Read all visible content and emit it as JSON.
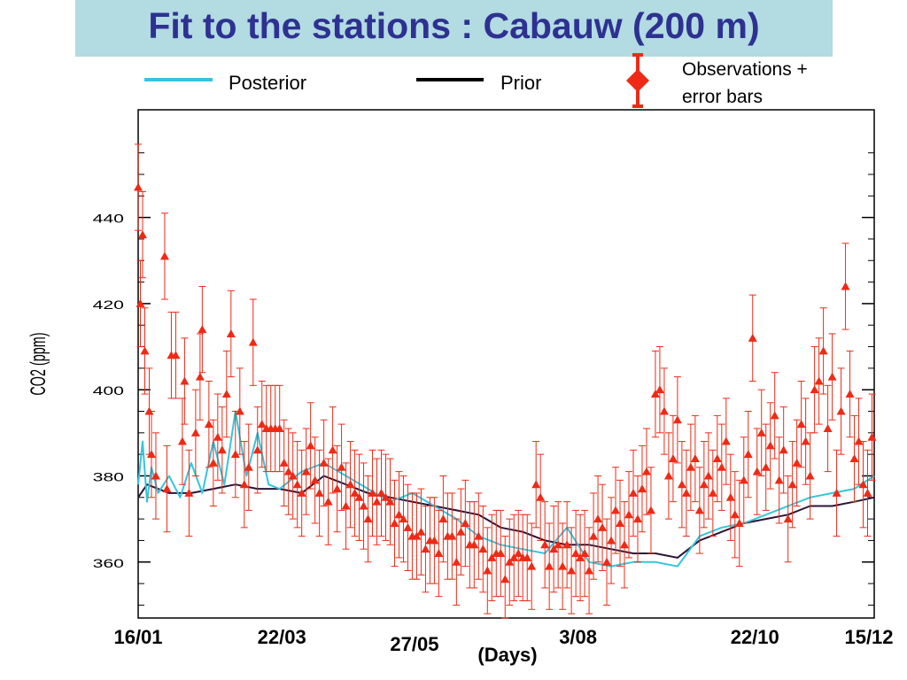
{
  "slide": {
    "title": "Fit to the stations : Cabauw (200 m)",
    "title_bg": "#b2dbe2",
    "title_color": "#2e3191"
  },
  "chart_data": {
    "type": "line",
    "title": "Fit to the stations : Cabauw (200 m)",
    "xlabel": "(Days)",
    "ylabel": "CO2 (ppm)",
    "x_tick_labels": [
      "16/01",
      "22/03",
      "27/05",
      "3/08",
      "22/10",
      "15/12"
    ],
    "x_tick_days": [
      16,
      81,
      147,
      215,
      295,
      349
    ],
    "xlim": [
      16,
      349
    ],
    "y_ticks": [
      360,
      380,
      400,
      420,
      440
    ],
    "ylim": [
      347,
      465
    ],
    "legend": {
      "placement": "top",
      "entries": [
        "Posterior",
        "Prior",
        "Observations + error bars"
      ]
    },
    "colors": {
      "posterior": "#33c6dc",
      "prior": "#2a1436",
      "observations": "#ee2a16"
    },
    "series": [
      {
        "name": "Prior",
        "x": [
          16,
          20,
          25,
          30,
          40,
          50,
          60,
          70,
          80,
          90,
          100,
          110,
          120,
          130,
          140,
          150,
          160,
          170,
          180,
          190,
          200,
          210,
          220,
          230,
          240,
          250,
          260,
          270,
          280,
          290,
          300,
          310,
          320,
          330,
          340,
          349
        ],
        "values": [
          375,
          378,
          377,
          376,
          376,
          377,
          378,
          377,
          377,
          376,
          380,
          378,
          376,
          375,
          374,
          373,
          372,
          371,
          368,
          367,
          365,
          364,
          364,
          363,
          362,
          362,
          361,
          365,
          367,
          369,
          370,
          371,
          373,
          373,
          374,
          375
        ]
      },
      {
        "name": "Posterior",
        "x": [
          16,
          18,
          20,
          22,
          25,
          30,
          35,
          40,
          45,
          50,
          55,
          60,
          65,
          70,
          75,
          80,
          90,
          100,
          110,
          120,
          130,
          140,
          150,
          160,
          170,
          180,
          190,
          200,
          210,
          220,
          230,
          240,
          250,
          260,
          270,
          280,
          290,
          300,
          310,
          320,
          330,
          340,
          349
        ],
        "values": [
          378,
          388,
          374,
          382,
          376,
          380,
          375,
          383,
          376,
          388,
          378,
          395,
          380,
          390,
          378,
          377,
          381,
          383,
          380,
          377,
          374,
          376,
          373,
          370,
          366,
          364,
          363,
          362,
          368,
          360,
          359,
          360,
          360,
          359,
          366,
          368,
          369,
          371,
          373,
          375,
          376,
          377,
          380
        ]
      },
      {
        "name": "Observations",
        "x": [
          16,
          17,
          18,
          19,
          21,
          22,
          24,
          28,
          29,
          31,
          33,
          36,
          37,
          39,
          42,
          44,
          45,
          48,
          50,
          52,
          54,
          56,
          58,
          60,
          62,
          64,
          66,
          68,
          70,
          72,
          74,
          76,
          78,
          80,
          82,
          84,
          86,
          88,
          90,
          92,
          94,
          96,
          98,
          100,
          102,
          104,
          106,
          108,
          110,
          112,
          114,
          116,
          118,
          120,
          122,
          124,
          126,
          128,
          130,
          132,
          134,
          136,
          138,
          140,
          142,
          144,
          146,
          148,
          150,
          152,
          154,
          156,
          158,
          160,
          162,
          164,
          166,
          168,
          170,
          172,
          174,
          176,
          178,
          180,
          182,
          184,
          186,
          188,
          190,
          192,
          194,
          196,
          198,
          200,
          202,
          204,
          206,
          208,
          210,
          212,
          214,
          216,
          218,
          220,
          222,
          224,
          226,
          228,
          230,
          232,
          234,
          236,
          238,
          240,
          242,
          244,
          246,
          248,
          250,
          252,
          254,
          256,
          258,
          260,
          262,
          264,
          266,
          268,
          270,
          272,
          274,
          276,
          278,
          280,
          282,
          284,
          286,
          288,
          290,
          292,
          294,
          296,
          298,
          300,
          302,
          304,
          306,
          308,
          310,
          312,
          314,
          316,
          318,
          320,
          322,
          324,
          326,
          328,
          330,
          332,
          334,
          336,
          338,
          340,
          342,
          344,
          346,
          348
        ],
        "values": [
          447,
          420,
          436,
          409,
          395,
          385,
          380,
          431,
          377,
          408,
          408,
          388,
          402,
          376,
          390,
          403,
          414,
          392,
          383,
          389,
          386,
          399,
          413,
          385,
          395,
          378,
          382,
          411,
          386,
          392,
          391,
          391,
          391,
          391,
          383,
          381,
          380,
          378,
          376,
          381,
          387,
          379,
          376,
          383,
          374,
          386,
          377,
          382,
          373,
          378,
          376,
          375,
          373,
          370,
          376,
          374,
          376,
          375,
          374,
          369,
          371,
          370,
          368,
          366,
          366,
          367,
          363,
          365,
          365,
          362,
          370,
          366,
          366,
          360,
          367,
          369,
          364,
          364,
          366,
          363,
          358,
          361,
          362,
          362,
          356,
          360,
          361,
          362,
          361,
          361,
          359,
          378,
          375,
          364,
          359,
          363,
          364,
          359,
          364,
          358,
          362,
          361,
          362,
          358,
          366,
          370,
          368,
          360,
          365,
          372,
          369,
          364,
          371,
          376,
          370,
          377,
          381,
          372,
          399,
          400,
          395,
          380,
          384,
          393,
          378,
          376,
          382,
          384,
          372,
          378,
          380,
          376,
          384,
          382,
          388,
          375,
          371,
          369,
          379,
          385,
          412,
          381,
          390,
          382,
          387,
          394,
          379,
          386,
          370,
          378,
          383,
          392,
          388,
          380,
          400,
          402,
          409,
          391,
          403,
          376,
          395,
          424,
          399,
          384,
          388,
          378,
          376,
          389
        ],
        "error_bar": 10
      }
    ]
  }
}
